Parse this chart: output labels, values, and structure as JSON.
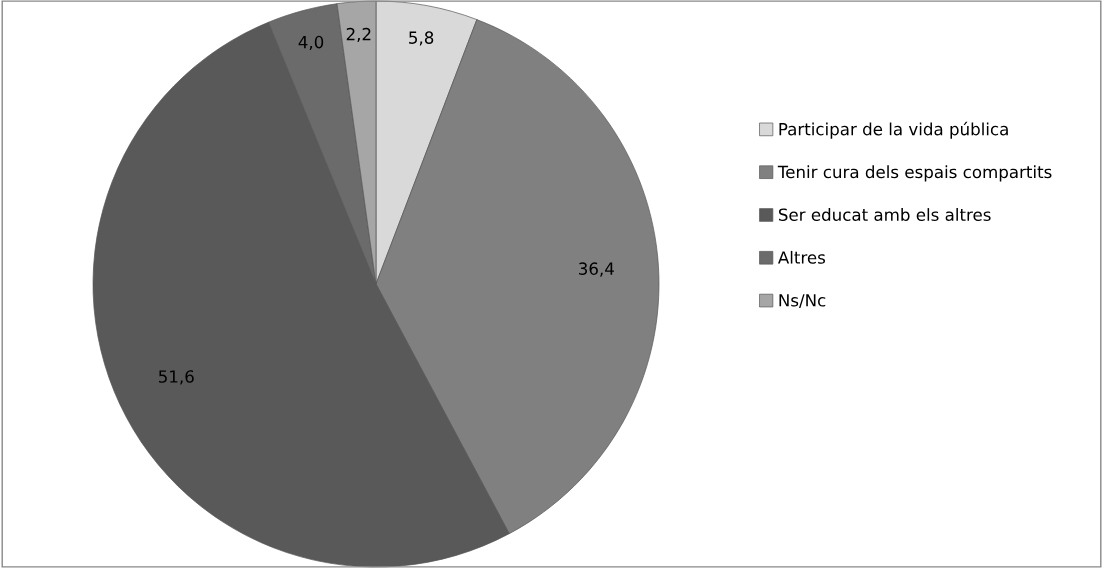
{
  "chart_data": {
    "type": "pie",
    "categories": [
      "Participar de la vida pública",
      "Tenir cura dels espais compartits",
      "Ser educat amb els altres",
      "Altres",
      "Ns/Nc"
    ],
    "values": [
      5.8,
      36.4,
      51.6,
      4.0,
      2.2
    ],
    "value_labels": [
      "5,8",
      "36,4",
      "51,6",
      "4,0",
      "2,2"
    ],
    "colors": [
      "#d9d9d9",
      "#808080",
      "#595959",
      "#6b6b6b",
      "#a6a6a6"
    ],
    "legend": "right"
  }
}
